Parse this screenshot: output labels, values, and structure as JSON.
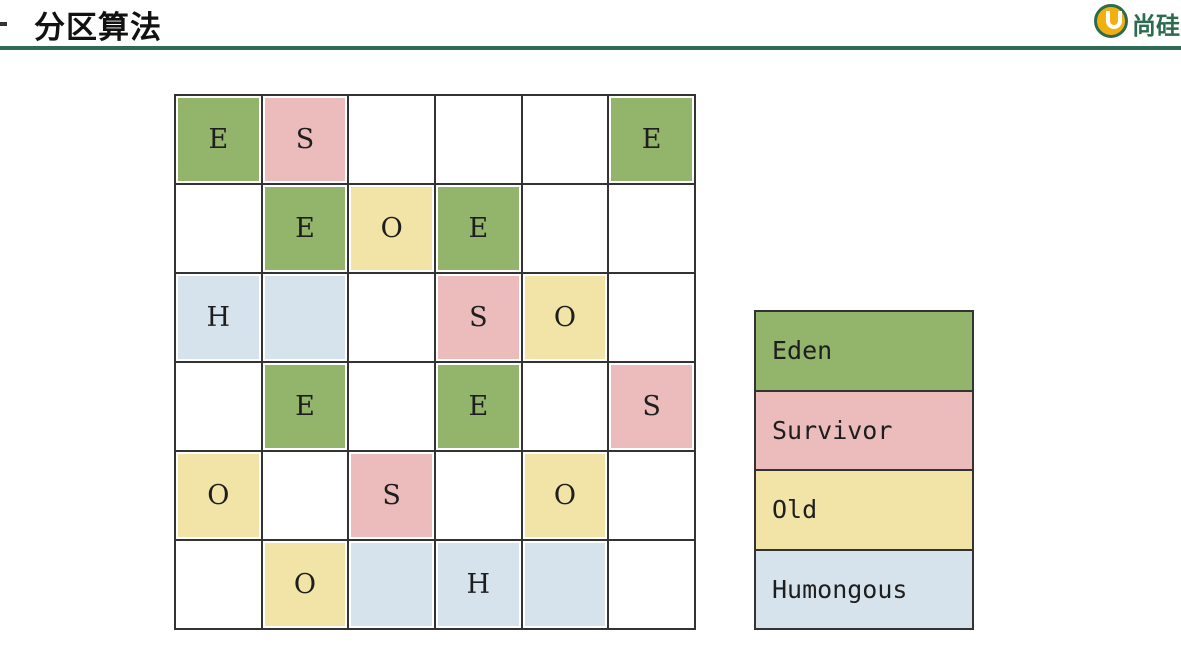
{
  "header": {
    "title": "分区算法",
    "logo_text": "尚硅"
  },
  "colors": {
    "E": "#93b46b",
    "S": "#ecbcbc",
    "O": "#f2e4a6",
    "H": "#d6e3ec",
    "": "#ffffff",
    "accent": "#2f6a55"
  },
  "grid": {
    "rows": [
      [
        {
          "type": "E",
          "label": "E"
        },
        {
          "type": "S",
          "label": "S"
        },
        {
          "type": "",
          "label": ""
        },
        {
          "type": "",
          "label": ""
        },
        {
          "type": "",
          "label": ""
        },
        {
          "type": "E",
          "label": "E"
        }
      ],
      [
        {
          "type": "",
          "label": ""
        },
        {
          "type": "E",
          "label": "E"
        },
        {
          "type": "O",
          "label": "O"
        },
        {
          "type": "E",
          "label": "E"
        },
        {
          "type": "",
          "label": ""
        },
        {
          "type": "",
          "label": ""
        }
      ],
      [
        {
          "type": "H",
          "label": "H"
        },
        {
          "type": "H",
          "label": ""
        },
        {
          "type": "",
          "label": ""
        },
        {
          "type": "S",
          "label": "S"
        },
        {
          "type": "O",
          "label": "O"
        },
        {
          "type": "",
          "label": ""
        }
      ],
      [
        {
          "type": "",
          "label": ""
        },
        {
          "type": "E",
          "label": "E"
        },
        {
          "type": "",
          "label": ""
        },
        {
          "type": "E",
          "label": "E"
        },
        {
          "type": "",
          "label": ""
        },
        {
          "type": "S",
          "label": "S"
        }
      ],
      [
        {
          "type": "O",
          "label": "O"
        },
        {
          "type": "",
          "label": ""
        },
        {
          "type": "S",
          "label": "S"
        },
        {
          "type": "",
          "label": ""
        },
        {
          "type": "O",
          "label": "O"
        },
        {
          "type": "",
          "label": ""
        }
      ],
      [
        {
          "type": "",
          "label": ""
        },
        {
          "type": "O",
          "label": "O"
        },
        {
          "type": "H",
          "label": ""
        },
        {
          "type": "H",
          "label": "H"
        },
        {
          "type": "H",
          "label": ""
        },
        {
          "type": "",
          "label": ""
        }
      ]
    ]
  },
  "legend": {
    "items": [
      {
        "type": "E",
        "label": "Eden"
      },
      {
        "type": "S",
        "label": "Survivor"
      },
      {
        "type": "O",
        "label": "Old"
      },
      {
        "type": "H",
        "label": "Humongous"
      }
    ]
  }
}
